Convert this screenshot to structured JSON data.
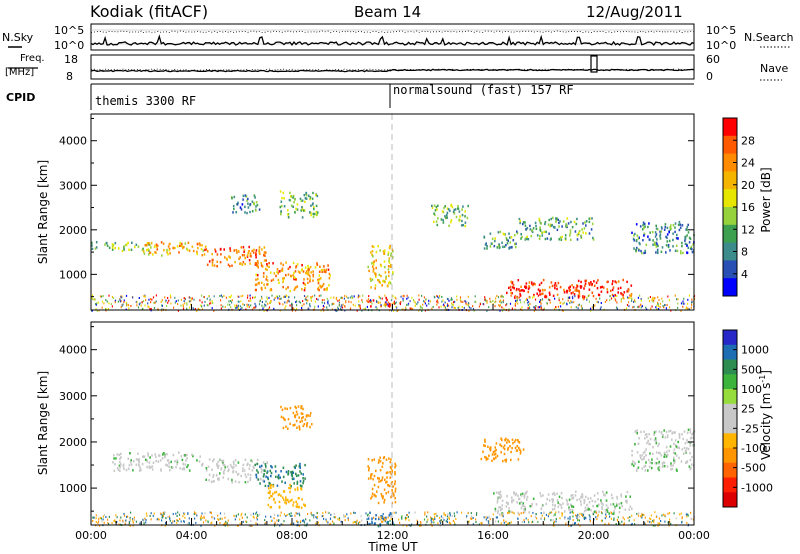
{
  "header": {
    "station": "Kodiak (fitACF)",
    "beam": "Beam 14",
    "date": "12/Aug/2011"
  },
  "top_panel": {
    "left_label": "N.Sky",
    "left_ticks": [
      "10^5",
      "10^0"
    ],
    "right_ticks": [
      "10^5",
      "10^0"
    ],
    "right_label": "N.Search"
  },
  "freq_panel": {
    "left_label": "Freq.",
    "left_unit": "[MHz]",
    "left_ticks": [
      "18",
      "8"
    ],
    "right_ticks": [
      "60",
      "0"
    ],
    "right_label": "Nave"
  },
  "cpid_panel": {
    "label": "CPID",
    "modes": [
      "themis 3300 RF",
      "normalsound (fast) 157 RF"
    ]
  },
  "power_panel": {
    "ylabel": "Slant Range [km]",
    "yticks": [
      "4000",
      "3000",
      "2000",
      "1000"
    ],
    "cbar_label": "Power [dB]",
    "cbar_ticks": [
      "28",
      "24",
      "20",
      "16",
      "12",
      "8",
      "4"
    ],
    "cbar_colors": [
      "#ff0000",
      "#ff5a00",
      "#ff8c00",
      "#f5b400",
      "#e6e600",
      "#96d23c",
      "#3ca050",
      "#3c8c8c",
      "#2850b4",
      "#0000ff"
    ]
  },
  "velocity_panel": {
    "ylabel": "Slant Range [km]",
    "yticks": [
      "4000",
      "3000",
      "2000",
      "1000"
    ],
    "cbar_label": "Velocity [m s",
    "cbar_label_sup": "-1",
    "cbar_label_end": "]",
    "cbar_ticks": [
      "1000",
      "500",
      "100",
      "25",
      "-25",
      "-100",
      "-500",
      "-1000"
    ],
    "cbar_colors": [
      "#2828c8",
      "#1e6eb4",
      "#2d8c50",
      "#3cb43c",
      "#96dc3c",
      "#c8c8c8",
      "#c8c8c8",
      "#ffb400",
      "#ff9600",
      "#ff6400",
      "#ff1e00",
      "#dc0000"
    ]
  },
  "xaxis": {
    "ticks": [
      "00:00",
      "04:00",
      "08:00",
      "12:00",
      "16:00",
      "20:00",
      "00:00"
    ],
    "label": "Time UT"
  },
  "chart_data": {
    "type": "heatmap",
    "title": "Kodiak (fitACF)",
    "subtitle": "Beam 14",
    "date": "12/Aug/2011",
    "xlabel": "Time UT",
    "ylabel": "Slant Range [km]",
    "x_range_hours": [
      0,
      24
    ],
    "y_range_km": [
      200,
      4600
    ],
    "power_scale_db": [
      0,
      30
    ],
    "velocity_scale": [
      -1000,
      1000
    ],
    "power_regions": [
      {
        "t0": 0.0,
        "t1": 2.5,
        "r0": 1550,
        "r1": 1750,
        "p": 12
      },
      {
        "t0": 2.0,
        "t1": 4.5,
        "r0": 1450,
        "r1": 1750,
        "p": 20
      },
      {
        "t0": 4.5,
        "t1": 7.0,
        "r0": 1200,
        "r1": 1650,
        "p": 24
      },
      {
        "t0": 6.5,
        "t1": 9.5,
        "r0": 650,
        "r1": 1300,
        "p": 22
      },
      {
        "t0": 5.5,
        "t1": 6.7,
        "r0": 2400,
        "r1": 2800,
        "p": 8
      },
      {
        "t0": 7.5,
        "t1": 9.0,
        "r0": 2300,
        "r1": 2900,
        "p": 12
      },
      {
        "t0": 11.0,
        "t1": 12.0,
        "r0": 700,
        "r1": 1700,
        "p": 18
      },
      {
        "t0": 11.0,
        "t1": 12.0,
        "r0": 300,
        "r1": 500,
        "p": 26
      },
      {
        "t0": 13.5,
        "t1": 15.0,
        "r0": 2100,
        "r1": 2600,
        "p": 12
      },
      {
        "t0": 15.5,
        "t1": 17.0,
        "r0": 1600,
        "r1": 2000,
        "p": 10
      },
      {
        "t0": 16.5,
        "t1": 21.5,
        "r0": 500,
        "r1": 900,
        "p": 28
      },
      {
        "t0": 17.0,
        "t1": 20.0,
        "r0": 1800,
        "r1": 2300,
        "p": 10
      },
      {
        "t0": 21.5,
        "t1": 24.0,
        "r0": 1500,
        "r1": 2200,
        "p": 8
      }
    ],
    "velocity_regions": [
      {
        "t0": 0.8,
        "t1": 4.5,
        "r0": 1400,
        "r1": 1800,
        "v": 0
      },
      {
        "t0": 4.5,
        "t1": 7.0,
        "r0": 1150,
        "r1": 1650,
        "v": 0
      },
      {
        "t0": 6.5,
        "t1": 8.5,
        "r0": 1050,
        "r1": 1550,
        "v": 100
      },
      {
        "t0": 7.0,
        "t1": 8.5,
        "r0": 600,
        "r1": 1100,
        "v": -50
      },
      {
        "t0": 7.5,
        "t1": 8.8,
        "r0": 2300,
        "r1": 2800,
        "v": -200
      },
      {
        "t0": 11.0,
        "t1": 12.1,
        "r0": 700,
        "r1": 1700,
        "v": -300
      },
      {
        "t0": 11.0,
        "t1": 12.0,
        "r0": 200,
        "r1": 500,
        "v": 200
      },
      {
        "t0": 15.5,
        "t1": 17.2,
        "r0": 1600,
        "r1": 2100,
        "v": -120
      },
      {
        "t0": 16.0,
        "t1": 21.5,
        "r0": 450,
        "r1": 950,
        "v": 0
      },
      {
        "t0": 21.5,
        "t1": 24.0,
        "r0": 1400,
        "r1": 2300,
        "v": 0
      }
    ]
  }
}
